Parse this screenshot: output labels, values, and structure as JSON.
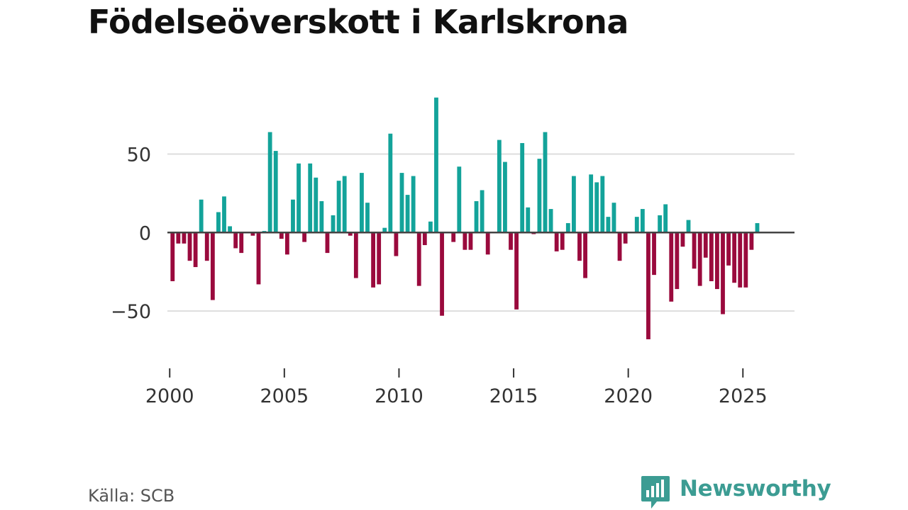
{
  "title": "Födelseöverskott i Karlskrona",
  "source": "Källa: SCB",
  "brand": {
    "name": "Newsworthy",
    "icon": "newsworthy-logo-icon"
  },
  "colors": {
    "positive": "#13a39a",
    "negative": "#9a0a3d",
    "grid": "#dddddd",
    "zero": "#444444",
    "text": "#333333",
    "brand": "#3c9c93"
  },
  "chart_data": {
    "type": "bar",
    "title": "Födelseöverskott i Karlskrona",
    "xlabel": "",
    "ylabel": "",
    "grid": true,
    "xlim": [
      1999.9,
      2027.25
    ],
    "ylim": [
      -82,
      94
    ],
    "y_ticks": [
      50,
      0,
      -50
    ],
    "y_tick_labels": [
      "50",
      "0",
      "−50"
    ],
    "x_ticks": [
      2000,
      2005,
      2010,
      2015,
      2020,
      2025
    ],
    "x_tick_labels": [
      "2000",
      "2005",
      "2010",
      "2015",
      "2020",
      "2025"
    ],
    "bar_width": 0.18,
    "x": [
      2000.125,
      2000.375,
      2000.625,
      2000.875,
      2001.125,
      2001.375,
      2001.625,
      2001.875,
      2002.125,
      2002.375,
      2002.625,
      2002.875,
      2003.125,
      2003.375,
      2003.625,
      2003.875,
      2004.125,
      2004.375,
      2004.625,
      2004.875,
      2005.125,
      2005.375,
      2005.625,
      2005.875,
      2006.125,
      2006.375,
      2006.625,
      2006.875,
      2007.125,
      2007.375,
      2007.625,
      2007.875,
      2008.125,
      2008.375,
      2008.625,
      2008.875,
      2009.125,
      2009.375,
      2009.625,
      2009.875,
      2010.125,
      2010.375,
      2010.625,
      2010.875,
      2011.125,
      2011.375,
      2011.625,
      2011.875,
      2012.125,
      2012.375,
      2012.625,
      2012.875,
      2013.125,
      2013.375,
      2013.625,
      2013.875,
      2014.125,
      2014.375,
      2014.625,
      2014.875,
      2015.125,
      2015.375,
      2015.625,
      2015.875,
      2016.125,
      2016.375,
      2016.625,
      2016.875,
      2017.125,
      2017.375,
      2017.625,
      2017.875,
      2018.125,
      2018.375,
      2018.625,
      2018.875,
      2019.125,
      2019.375,
      2019.625,
      2019.875,
      2020.125,
      2020.375,
      2020.625,
      2020.875,
      2021.125,
      2021.375,
      2021.625,
      2021.875,
      2022.125,
      2022.375,
      2022.625,
      2022.875,
      2023.125,
      2023.375,
      2023.625,
      2023.875,
      2024.125,
      2024.375,
      2024.625,
      2024.875,
      2025.125,
      2025.375,
      2025.625,
      2025.875
    ],
    "values": [
      -31,
      -7,
      -7,
      -18,
      -22,
      21,
      -18,
      -43,
      13,
      23,
      4,
      -10,
      -13,
      0,
      -2,
      -33,
      1,
      64,
      52,
      -4,
      -14,
      21,
      44,
      -6,
      44,
      35,
      20,
      -13,
      11,
      33,
      36,
      -2,
      -29,
      38,
      19,
      -35,
      -33,
      3,
      63,
      -15,
      38,
      24,
      36,
      -34,
      -8,
      7,
      86,
      -53,
      0,
      -6,
      42,
      -11,
      -11,
      20,
      27,
      -14,
      0,
      59,
      45,
      -11,
      -49,
      57,
      16,
      -1,
      47,
      64,
      15,
      -12,
      -11,
      6,
      36,
      -18,
      -29,
      37,
      32,
      36,
      10,
      19,
      -18,
      -7,
      0,
      10,
      15,
      -68,
      -27,
      11,
      18,
      -44,
      -36,
      -9,
      8,
      -23,
      -34,
      -16,
      -31,
      -36,
      -52,
      -21,
      -32,
      -35,
      -35,
      -11,
      6,
      0
    ]
  }
}
